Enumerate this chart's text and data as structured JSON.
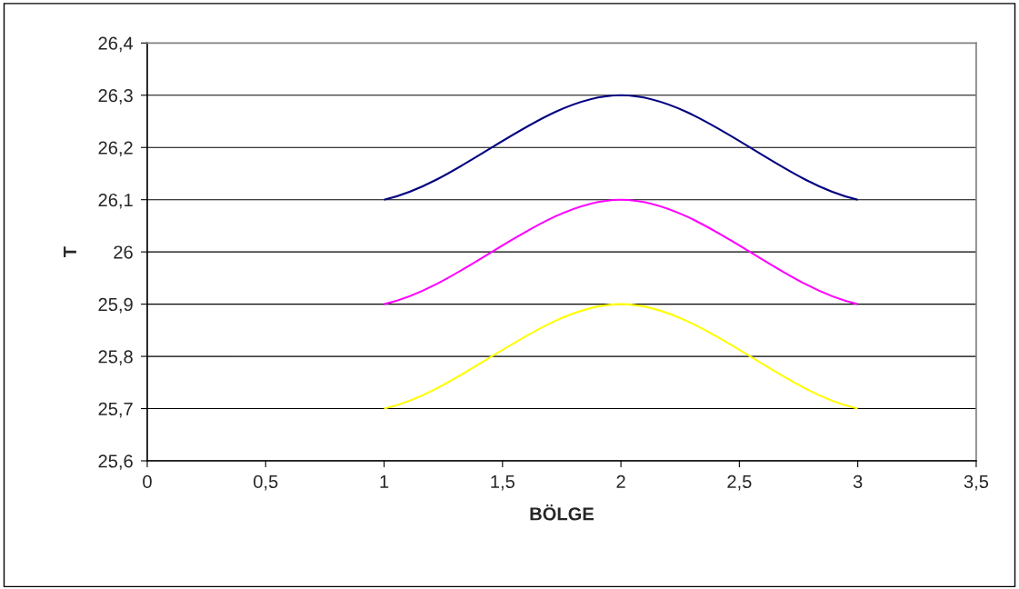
{
  "chart_data": {
    "type": "line",
    "xlabel": "BÖLGE",
    "ylabel": "T",
    "x": [
      1,
      2,
      3
    ],
    "series": [
      {
        "color": "#000080",
        "values": [
          26.1,
          26.3,
          26.1
        ]
      },
      {
        "color": "#ff00ff",
        "values": [
          25.9,
          26.1,
          25.9
        ]
      },
      {
        "color": "#ffff00",
        "values": [
          25.7,
          25.9,
          25.7
        ]
      }
    ],
    "xlim": [
      0,
      3.5
    ],
    "xticks": [
      0,
      {
        "value": 0.5,
        "label": "0,5"
      },
      1,
      {
        "value": 1.5,
        "label": "1,5"
      },
      2,
      {
        "value": 2.5,
        "label": "2,5"
      },
      3,
      {
        "value": 3.5,
        "label": "3,5"
      }
    ],
    "ylim": [
      25.6,
      26.4
    ],
    "yticks": [
      {
        "value": 25.6,
        "label": "25,6"
      },
      {
        "value": 25.7,
        "label": "25,7"
      },
      {
        "value": 25.8,
        "label": "25,8"
      },
      {
        "value": 25.9,
        "label": "25,9"
      },
      26,
      {
        "value": 26.1,
        "label": "26,1"
      },
      {
        "value": 26.2,
        "label": "26,2"
      },
      {
        "value": 26.3,
        "label": "26,3"
      },
      {
        "value": 26.4,
        "label": "26,4"
      }
    ],
    "grid": "y",
    "marker": "none",
    "line_style": "solid"
  }
}
